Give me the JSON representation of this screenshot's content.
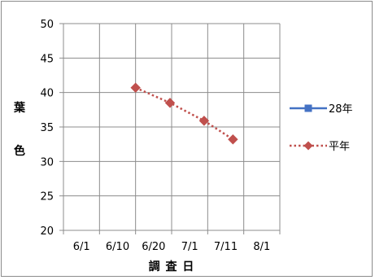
{
  "chart_data": {
    "type": "line",
    "title": "",
    "ylabel_chars": [
      "葉",
      "色"
    ],
    "xlabel": "調 査 日",
    "categories": [
      "6/1",
      "6/10",
      "6/20",
      "7/1",
      "7/11",
      "8/1"
    ],
    "ylim": [
      20,
      50
    ],
    "yticks": [
      20,
      25,
      30,
      35,
      40,
      45,
      50
    ],
    "grid": true,
    "legend_position": "right",
    "series": [
      {
        "name": "28年",
        "color": "#4472c4",
        "marker": "square",
        "line_style": "solid",
        "x": [],
        "values": []
      },
      {
        "name": "平年",
        "color": "#c0504d",
        "marker": "diamond",
        "line_style": "dotted",
        "x": [
          "6/15",
          "6/25",
          "7/5",
          "7/15"
        ],
        "values": [
          40.7,
          38.5,
          35.9,
          33.2
        ]
      }
    ]
  }
}
